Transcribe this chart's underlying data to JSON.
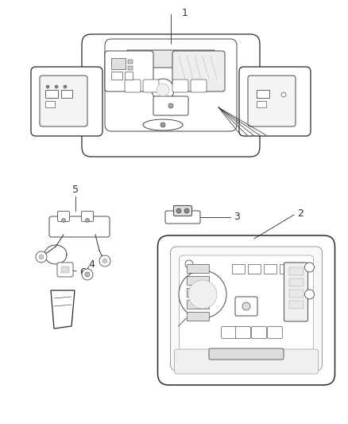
{
  "background_color": "#ffffff",
  "line_color": "#2a2a2a",
  "label_color": "#333333",
  "fig_width": 4.38,
  "fig_height": 5.33,
  "dpi": 100
}
